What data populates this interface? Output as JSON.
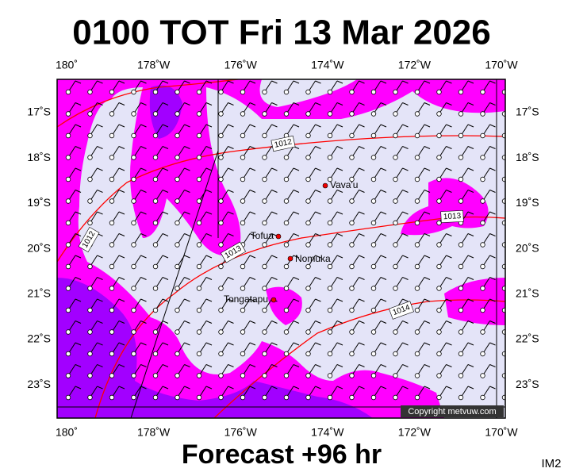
{
  "header": {
    "title": "0100 TOT Fri 13 Mar 2026"
  },
  "footer": {
    "subtitle": "Forecast +96 hr",
    "corner": "IM2"
  },
  "axes": {
    "lon_labels": [
      "180˚",
      "178˚W",
      "176˚W",
      "174˚W",
      "172˚W",
      "170˚W"
    ],
    "lat_labels": [
      "17˚S",
      "18˚S",
      "19˚S",
      "20˚S",
      "21˚S",
      "22˚S",
      "23˚S"
    ]
  },
  "places": [
    "Vava'u",
    "Tofua",
    "Nomuka",
    "Tongatapu"
  ],
  "isobars": [
    "1012",
    "1012",
    "1013",
    "1013",
    "1014"
  ],
  "copyright": "Copyright metvuw.com"
}
